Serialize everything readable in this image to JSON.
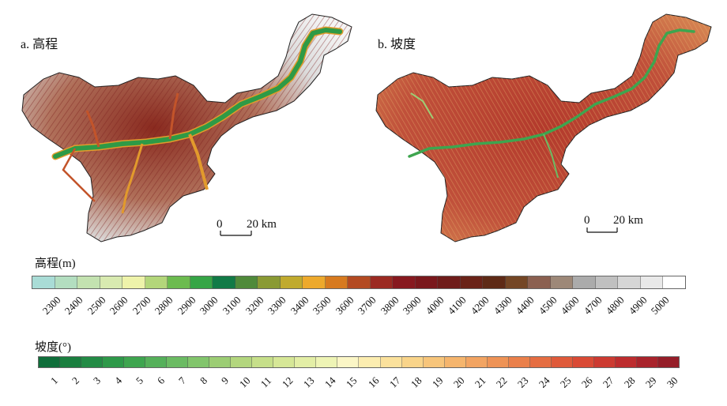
{
  "panels": [
    {
      "label": "a. 高程",
      "scale_zero": "0",
      "scale_distance": "20 km"
    },
    {
      "label": "b. 坡度",
      "scale_zero": "0",
      "scale_distance": "20 km"
    }
  ],
  "elevation_legend": {
    "title": "高程(m)",
    "ticks": [
      "2300",
      "2400",
      "2500",
      "2600",
      "2700",
      "2800",
      "2900",
      "3000",
      "3100",
      "3200",
      "3300",
      "3400",
      "3500",
      "3600",
      "3700",
      "3800",
      "3900",
      "4000",
      "4100",
      "4200",
      "4300",
      "4400",
      "4500",
      "4600",
      "4700",
      "4800",
      "4900",
      "5000"
    ],
    "colors": [
      "#a9dcd6",
      "#b3dec0",
      "#c3e2b0",
      "#d8eab0",
      "#eef3aa",
      "#b3d67a",
      "#6cbb4f",
      "#36a546",
      "#117a46",
      "#4f8a3a",
      "#8a9a34",
      "#c0aa2e",
      "#eda92c",
      "#d77a1f",
      "#b34a22",
      "#9b2a22",
      "#87191f",
      "#7a181c",
      "#6f1c1a",
      "#6a2318",
      "#5e2a16",
      "#744625",
      "#8b6050",
      "#9d8878",
      "#ababab",
      "#c0c0c0",
      "#d6d6d6",
      "#e9e9e9",
      "#ffffff"
    ]
  },
  "slope_legend": {
    "title": "坡度(°)",
    "ticks": [
      "1",
      "2",
      "3",
      "4",
      "5",
      "6",
      "7",
      "8",
      "9",
      "10",
      "11",
      "12",
      "13",
      "14",
      "15",
      "16",
      "17",
      "18",
      "19",
      "20",
      "21",
      "22",
      "23",
      "24",
      "25",
      "26",
      "27",
      "28",
      "29",
      "30"
    ],
    "colors": [
      "#0f6e3a",
      "#1a7f3f",
      "#238b45",
      "#2e9949",
      "#3ea54f",
      "#55b05a",
      "#6bbb63",
      "#82c56c",
      "#9ccd74",
      "#b3d67e",
      "#c6df8a",
      "#d6e797",
      "#e3eea6",
      "#eef4b5",
      "#fbf6c6",
      "#fcedb0",
      "#fbe19c",
      "#f9d48a",
      "#f7c57b",
      "#f5b56d",
      "#f2a462",
      "#ee9356",
      "#ea804b",
      "#e56d42",
      "#df5a3a",
      "#d94a35",
      "#cc3a31",
      "#bd2c2e",
      "#a9232b",
      "#951d28"
    ]
  },
  "colors": {
    "river": "#2e9a46",
    "river_edge": "#e29a2c",
    "relief_dark": "#7a1c1a",
    "relief_light": "#ececec",
    "slope_base": "#a9302a",
    "slope_light": "#e7b36c"
  }
}
